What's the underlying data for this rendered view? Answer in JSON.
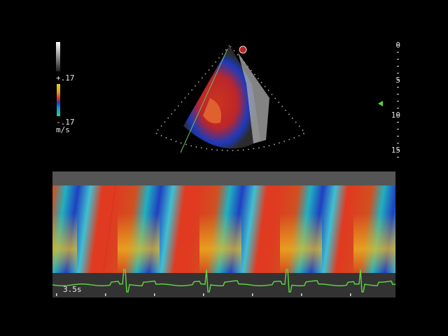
{
  "velocity_scale": {
    "max_label": "+.17",
    "min_label": "-.17",
    "unit": "m/s"
  },
  "depth_scale": {
    "labels": [
      "0",
      "5",
      "10",
      "15"
    ]
  },
  "mmode": {
    "sweep_label": "3.5s"
  },
  "colors": {
    "ecg": "#5cd040",
    "marker": "#5cd040",
    "cursor_line": "#6cc060",
    "flow_red": "#e03a20",
    "flow_blue": "#2040d0",
    "flow_cyan": "#20c0c0",
    "flow_yellow": "#f0c020"
  },
  "icons": {
    "probe_marker": "probe-orientation-marker-icon",
    "focus": "focus-triangle-icon"
  }
}
